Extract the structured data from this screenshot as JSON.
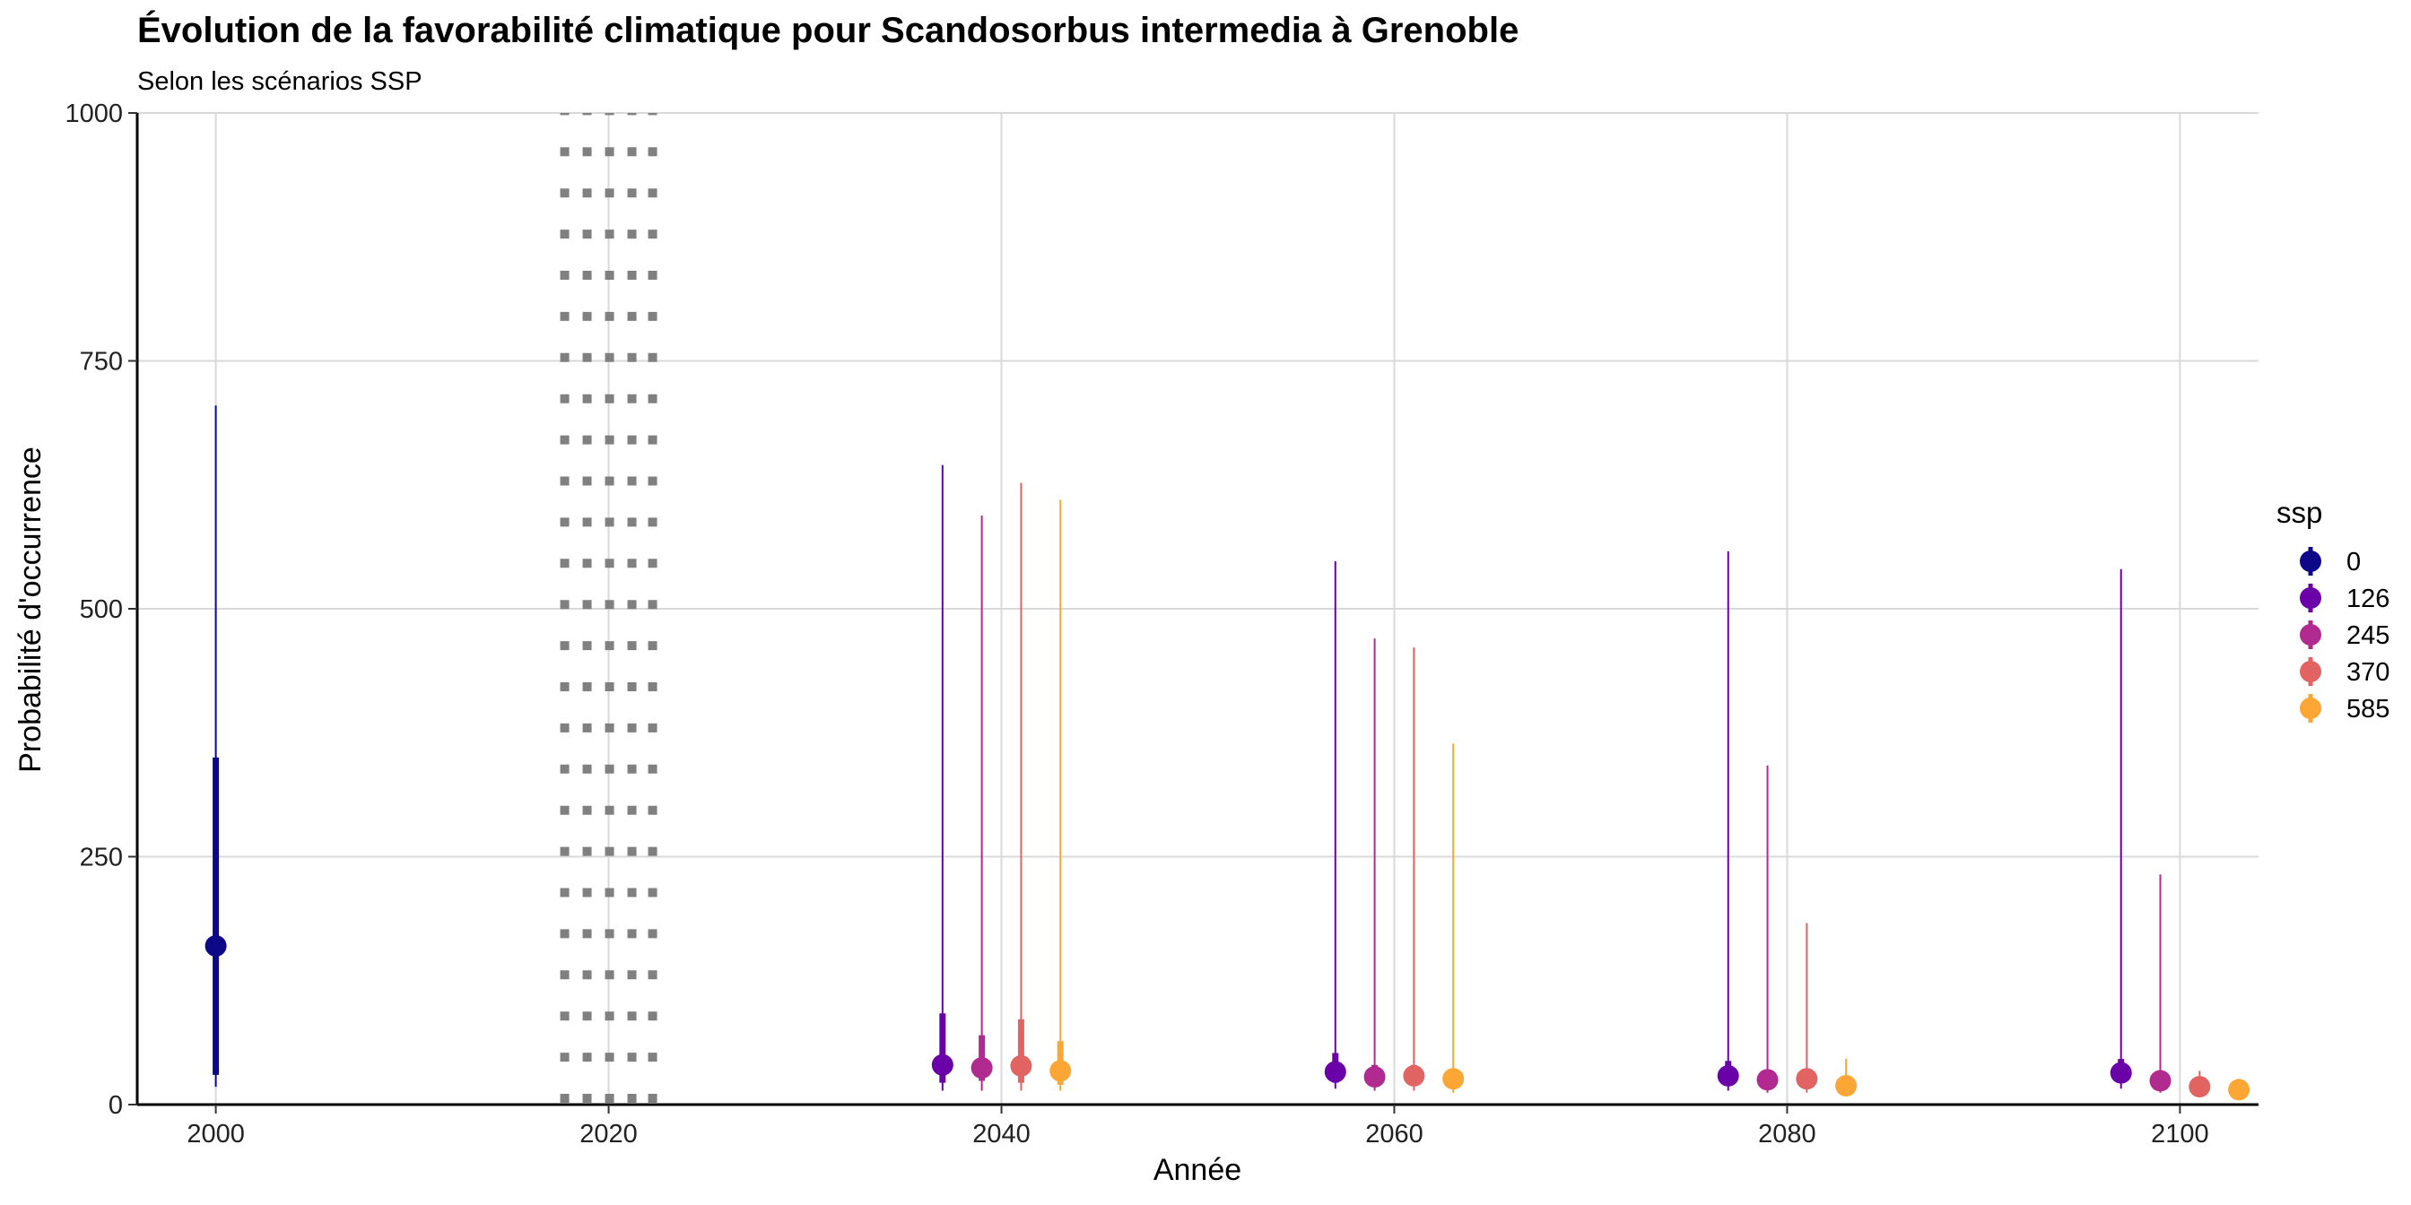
{
  "chart_data": {
    "type": "pointrange",
    "title": "Évolution de la favorabilité climatique pour Scandosorbus intermedia à Grenoble",
    "subtitle": "Selon les scénarios SSP",
    "xlabel": "Année",
    "ylabel": "Probabilité d'occurrence",
    "xlim": [
      1996,
      2104
    ],
    "ylim": [
      0,
      1000
    ],
    "x_ticks": [
      2000,
      2020,
      2040,
      2060,
      2080,
      2100
    ],
    "y_ticks": [
      0,
      250,
      500,
      750,
      1000
    ],
    "grid": true,
    "reference_line": {
      "x": 2020,
      "style": "dotted"
    },
    "legend": {
      "title": "ssp",
      "position": "right"
    },
    "series": [
      {
        "name": "0",
        "color": "#0D0887",
        "points": [
          {
            "x": 2000,
            "y": 160,
            "inner": [
              30,
              350
            ],
            "outer": [
              18,
              705
            ]
          }
        ]
      },
      {
        "name": "126",
        "color": "#6A00A8",
        "points": [
          {
            "x": 2037,
            "y": 40,
            "inner": [
              22,
              92
            ],
            "outer": [
              14,
              645
            ]
          },
          {
            "x": 2057,
            "y": 33,
            "inner": [
              22,
              52
            ],
            "outer": [
              16,
              548
            ]
          },
          {
            "x": 2077,
            "y": 29,
            "inner": [
              20,
              44
            ],
            "outer": [
              14,
              558
            ]
          },
          {
            "x": 2097,
            "y": 32,
            "inner": [
              22,
              46
            ],
            "outer": [
              16,
              540
            ]
          }
        ]
      },
      {
        "name": "245",
        "color": "#B12A90",
        "points": [
          {
            "x": 2039,
            "y": 37,
            "inner": [
              24,
              70
            ],
            "outer": [
              14,
              594
            ]
          },
          {
            "x": 2059,
            "y": 28,
            "inner": [
              20,
              40
            ],
            "outer": [
              14,
              470
            ]
          },
          {
            "x": 2079,
            "y": 25,
            "inner": [
              18,
              35
            ],
            "outer": [
              12,
              342
            ]
          },
          {
            "x": 2099,
            "y": 24,
            "inner": [
              18,
              32
            ],
            "outer": [
              12,
              232
            ]
          }
        ]
      },
      {
        "name": "370",
        "color": "#E16462",
        "points": [
          {
            "x": 2041,
            "y": 39,
            "inner": [
              22,
              86
            ],
            "outer": [
              14,
              627
            ]
          },
          {
            "x": 2061,
            "y": 29,
            "inner": [
              20,
              40
            ],
            "outer": [
              14,
              461
            ]
          },
          {
            "x": 2081,
            "y": 26,
            "inner": [
              18,
              36
            ],
            "outer": [
              12,
              183
            ]
          },
          {
            "x": 2101,
            "y": 18,
            "inner": [
              14,
              24
            ],
            "outer": [
              10,
              34
            ]
          }
        ]
      },
      {
        "name": "585",
        "color": "#FCA636",
        "points": [
          {
            "x": 2043,
            "y": 34,
            "inner": [
              20,
              64
            ],
            "outer": [
              14,
              610
            ]
          },
          {
            "x": 2063,
            "y": 26,
            "inner": [
              18,
              34
            ],
            "outer": [
              12,
              364
            ]
          },
          {
            "x": 2083,
            "y": 19,
            "inner": [
              14,
              28
            ],
            "outer": [
              10,
              46
            ]
          },
          {
            "x": 2103,
            "y": 15,
            "inner": [
              12,
              20
            ],
            "outer": [
              8,
              26
            ]
          }
        ]
      }
    ]
  }
}
